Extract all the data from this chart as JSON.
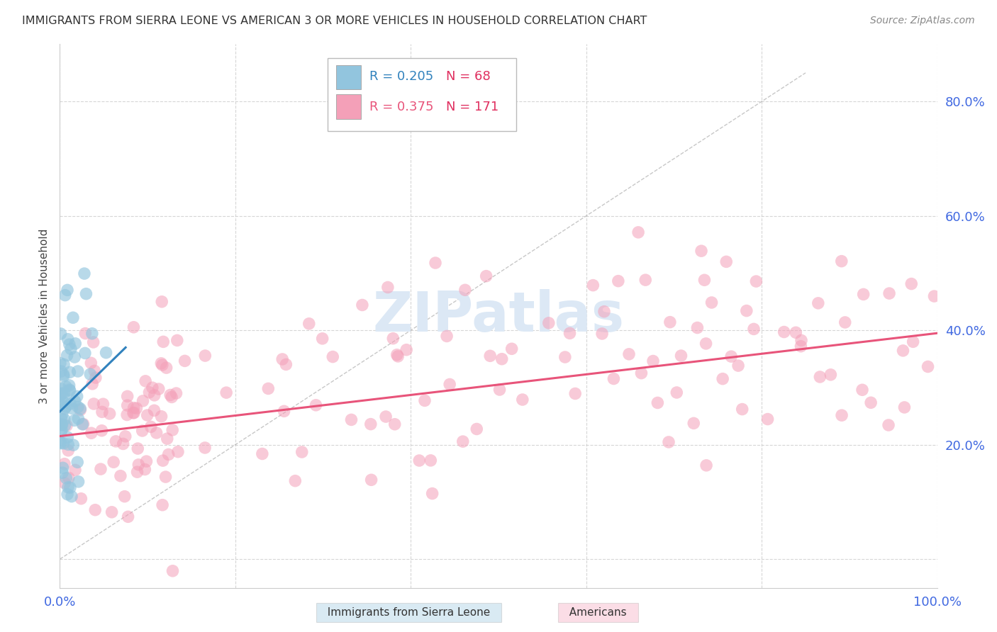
{
  "title": "IMMIGRANTS FROM SIERRA LEONE VS AMERICAN 3 OR MORE VEHICLES IN HOUSEHOLD CORRELATION CHART",
  "source": "Source: ZipAtlas.com",
  "ylabel": "3 or more Vehicles in Household",
  "xlim": [
    0.0,
    1.0
  ],
  "ylim": [
    -0.05,
    0.9
  ],
  "yticks": [
    0.0,
    0.2,
    0.4,
    0.6,
    0.8
  ],
  "ytick_labels": [
    "",
    "20.0%",
    "40.0%",
    "60.0%",
    "80.0%"
  ],
  "xticks": [
    0.0,
    0.2,
    0.4,
    0.6,
    0.8,
    1.0
  ],
  "xtick_labels": [
    "0.0%",
    "",
    "",
    "",
    "",
    "100.0%"
  ],
  "blue_color": "#92c5de",
  "pink_color": "#f4a0b8",
  "blue_line_color": "#3182bd",
  "pink_line_color": "#e8547a",
  "axis_text_color": "#4169E1",
  "title_color": "#333333",
  "watermark_text": "ZIPatlas",
  "watermark_color": "#dce8f5",
  "grid_color": "#cccccc",
  "bg_color": "#ffffff",
  "legend_r1": "R = 0.205",
  "legend_n1": "N = 68",
  "legend_r2": "R = 0.375",
  "legend_n2": "N = 171",
  "R_blue": 0.205,
  "N_blue": 68,
  "R_pink": 0.375,
  "N_pink": 171,
  "blue_seed": 10,
  "pink_seed": 20
}
